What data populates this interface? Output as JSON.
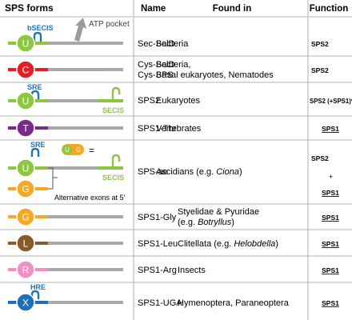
{
  "headers": {
    "forms": "SPS forms",
    "name": "Name",
    "found_in": "Found in",
    "function": "Function"
  },
  "annotations": {
    "atp_pocket": "ATP pocket",
    "bsecis": "bSECIS",
    "sre": "SRE",
    "hre": "HRE",
    "secis": "SECIS",
    "alt_exons": "Alternative exons at 5'"
  },
  "colors": {
    "sec_green": "#8dc63f",
    "gray_segment": "#a7a9ac",
    "red": "#e31e24",
    "purple": "#7b2a8b",
    "orange": "#f7a823",
    "brown": "#8b5a2b",
    "pink": "#f08fc0",
    "blue": "#1d6fb8",
    "cyan_label": "#1a75bc"
  },
  "rows": [
    {
      "letter": "U",
      "name": "Sec-SelD",
      "found_in": "Bacteria",
      "function": "SPS2"
    },
    {
      "letter": "C",
      "name": "Cys-SelD\nCys-SPS",
      "found_in": "Bacteria,\nBasal eukaryotes, Nematodes",
      "function": "SPS2"
    },
    {
      "letter": "U",
      "name": "SPS2",
      "found_in": "Eukaryotes",
      "function": "SPS2 (+SPS1)*"
    },
    {
      "letter": "T",
      "name": "SPS1-Thr",
      "found_in": "Vertebrates",
      "function": "SPS1"
    },
    {
      "letter_top": "U",
      "letter_bottom": "G",
      "inset_left": "U",
      "inset_right": "G",
      "inset_eq": "=",
      "name": "SPS-ae",
      "found_in_prefix": "Ascidians (e.g. ",
      "found_in_italic": "Ciona",
      "found_in_suffix": ")",
      "function_top": "SPS2",
      "function_plus": "+",
      "function_bottom": "SPS1"
    },
    {
      "letter": "G",
      "name": "SPS1-Gly",
      "found_in_prefix": "Styelidae & Pyuridae",
      "found_in_line2_prefix": "(e.g. ",
      "found_in_italic": "Botryllus",
      "found_in_suffix": ")",
      "function": "SPS1"
    },
    {
      "letter": "L",
      "name": "SPS1-Leu",
      "found_in_prefix": "Clitellata (e.g. ",
      "found_in_italic": "Helobdella",
      "found_in_suffix": ")",
      "function": "SPS1"
    },
    {
      "letter": "R",
      "name": "SPS1-Arg",
      "found_in": "Insects",
      "function": "SPS1"
    },
    {
      "letter": "X",
      "name": "SPS1-UGA",
      "found_in": "Hymenoptera, Paraneoptera",
      "function": "SPS1"
    }
  ]
}
